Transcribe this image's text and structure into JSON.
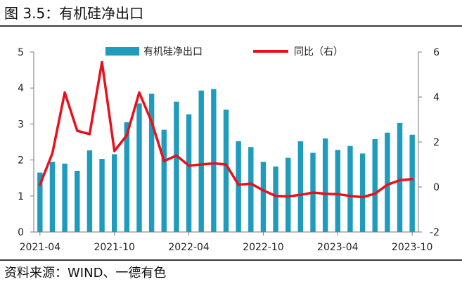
{
  "figure": {
    "title": "图 3.5：有机硅净出口",
    "source": "资料来源：WIND、一德有色"
  },
  "colors": {
    "bar": "#1e9bbd",
    "line": "#e8101b",
    "axis": "#777777",
    "text": "#222222"
  },
  "chart_data": {
    "type": "bar",
    "title": "",
    "categories": [
      "2021-04",
      "2021-05",
      "2021-06",
      "2021-07",
      "2021-08",
      "2021-09",
      "2021-10",
      "2021-11",
      "2021-12",
      "2022-01",
      "2022-02",
      "2022-03",
      "2022-04",
      "2022-05",
      "2022-06",
      "2022-07",
      "2022-08",
      "2022-09",
      "2022-10",
      "2022-11",
      "2022-12",
      "2023-01",
      "2023-02",
      "2023-03",
      "2023-04",
      "2023-05",
      "2023-06",
      "2023-07",
      "2023-08",
      "2023-09",
      "2023-10"
    ],
    "x_tick_labels": [
      "2021-04",
      "2021-10",
      "2022-04",
      "2022-10",
      "2023-04",
      "2023-10"
    ],
    "series": [
      {
        "name": "有机硅净出口",
        "type": "bar",
        "axis": "left",
        "values": [
          1.65,
          1.95,
          1.9,
          1.7,
          2.27,
          2.03,
          2.16,
          3.05,
          3.57,
          3.84,
          2.84,
          3.62,
          3.27,
          3.93,
          3.97,
          3.4,
          2.52,
          2.36,
          1.95,
          1.82,
          2.06,
          2.52,
          2.2,
          2.6,
          2.28,
          2.39,
          2.18,
          2.58,
          2.76,
          3.03,
          2.7
        ]
      },
      {
        "name": "同比（右）",
        "type": "line",
        "axis": "right",
        "values": [
          0.1,
          1.5,
          4.2,
          2.5,
          2.35,
          5.55,
          1.6,
          2.3,
          4.2,
          2.9,
          1.15,
          1.4,
          0.95,
          1.0,
          1.05,
          1.0,
          0.1,
          0.15,
          -0.15,
          -0.4,
          -0.42,
          -0.35,
          -0.25,
          -0.3,
          -0.32,
          -0.4,
          -0.45,
          -0.3,
          0.1,
          0.3,
          0.35
        ]
      }
    ],
    "y_left": {
      "min": 0,
      "max": 5,
      "ticks": [
        "0",
        "1",
        "2",
        "3",
        "4",
        "5"
      ]
    },
    "y_right": {
      "min": -2,
      "max": 6,
      "ticks": [
        "-2",
        "0",
        "2",
        "4",
        "6"
      ]
    },
    "legend": {
      "position": "top"
    }
  }
}
